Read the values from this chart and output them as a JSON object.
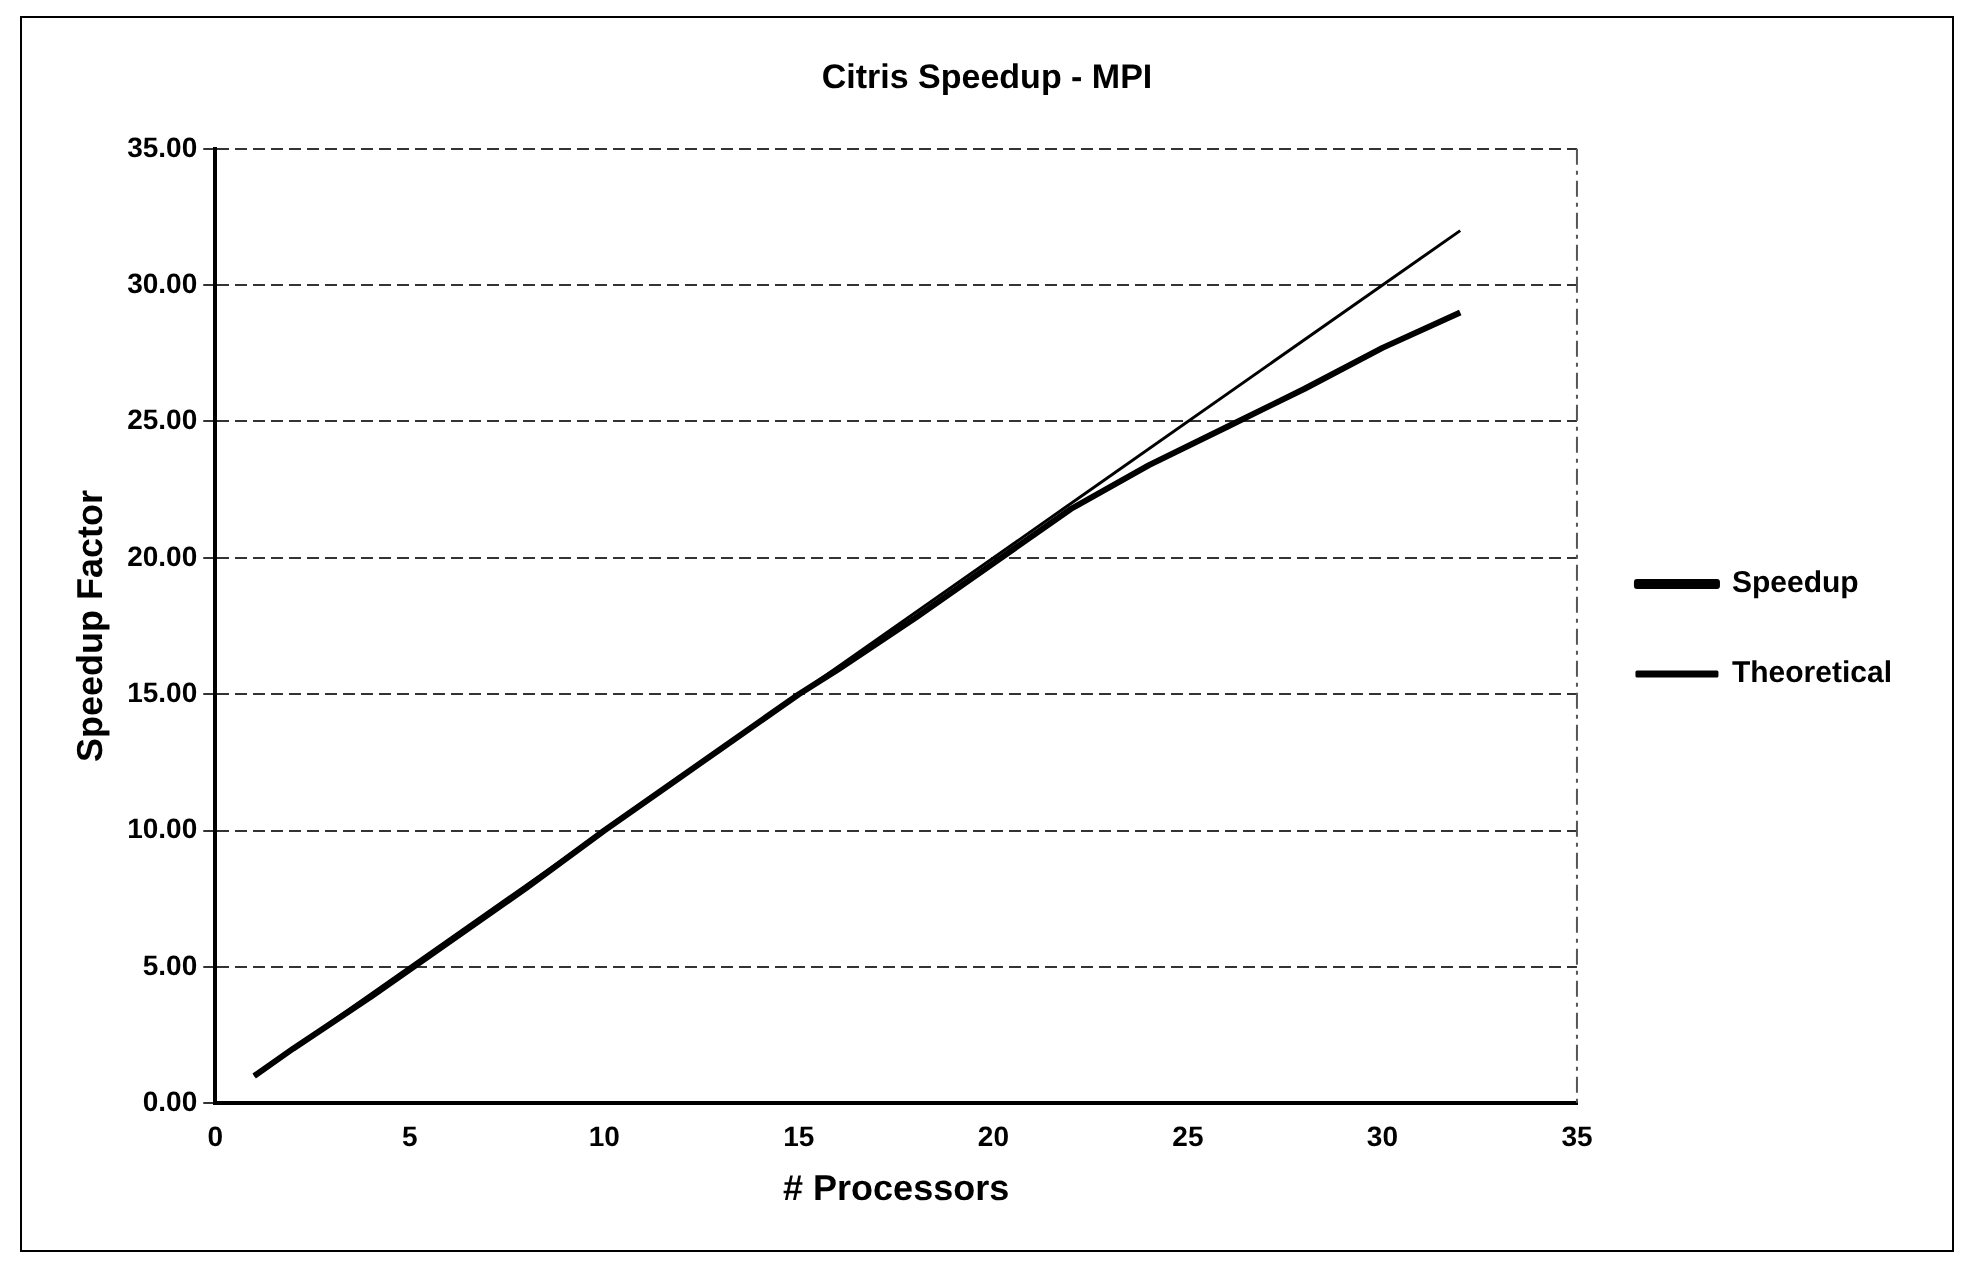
{
  "chart_data": {
    "type": "line",
    "title": "Citris Speedup - MPI",
    "xlabel": "# Processors",
    "ylabel": "Speedup Factor",
    "xlim": [
      0,
      35
    ],
    "xticks": [
      0,
      5,
      10,
      15,
      20,
      25,
      30,
      35
    ],
    "ylim": [
      0,
      35
    ],
    "yticks": [
      {
        "value": 0,
        "label": "0.00"
      },
      {
        "value": 5,
        "label": "5.00"
      },
      {
        "value": 10,
        "label": "10.00"
      },
      {
        "value": 15,
        "label": "15.00"
      },
      {
        "value": 20,
        "label": "20.00"
      },
      {
        "value": 25,
        "label": "25.00"
      },
      {
        "value": 30,
        "label": "30.00"
      },
      {
        "value": 35,
        "label": "35.00"
      }
    ],
    "grid": "y",
    "legend": "right",
    "marker": "none",
    "line_style": "solid",
    "series": [
      {
        "name": "Speedup",
        "color": "#000000",
        "x": [
          1,
          2,
          4,
          6,
          8,
          10,
          12,
          13,
          15,
          16,
          18,
          20,
          22,
          24,
          26,
          28,
          30,
          32
        ],
        "values": [
          1,
          2,
          3.9,
          5.9,
          7.9,
          10,
          12,
          13,
          15,
          15.9,
          17.8,
          19.8,
          21.8,
          23.4,
          24.8,
          26.2,
          27.7,
          29
        ]
      },
      {
        "name": "Theoretical",
        "color": "#000000",
        "x": [
          1,
          32
        ],
        "values": [
          1,
          32
        ]
      }
    ]
  }
}
